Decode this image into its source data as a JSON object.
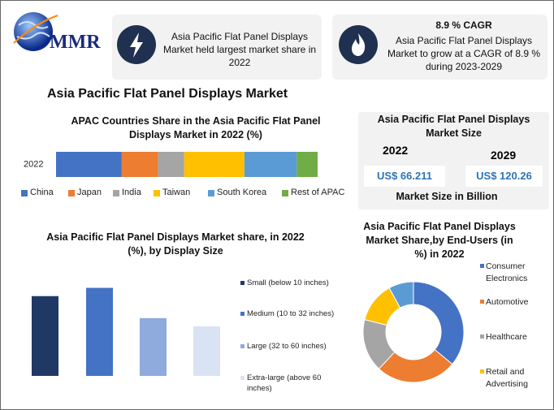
{
  "header": {
    "logo": "MMR",
    "box1": {
      "text": "Asia Pacific Flat Panel Displays Market held largest market share in 2022"
    },
    "box2": {
      "title": "8.9 % CAGR",
      "text": "Asia Pacific Flat Panel Displays Market to grow at a CAGR of 8.9 % during 2023-2029"
    }
  },
  "title": "Asia Pacific Flat Panel Displays Market",
  "market_size": {
    "title": "Asia Pacific Flat Panel Displays Market Size",
    "items": [
      {
        "year": "2022",
        "value": "US$ 66.211"
      },
      {
        "year": "2029",
        "value": "US$ 120.26"
      }
    ],
    "note": "Market Size in Billion"
  },
  "chart_data": [
    {
      "type": "bar",
      "orientation": "horizontal",
      "stacked": true,
      "title": "APAC Countries Share in the Asia Pacific Flat Panel Displays Market in 2022 (%)",
      "categories": [
        "2022"
      ],
      "xlim": [
        0,
        100
      ],
      "series": [
        {
          "name": "China",
          "color": "#4472c4",
          "values": [
            25
          ]
        },
        {
          "name": "Japan",
          "color": "#ed7d31",
          "values": [
            14
          ]
        },
        {
          "name": "India",
          "color": "#a5a5a5",
          "values": [
            10
          ]
        },
        {
          "name": "Taiwan",
          "color": "#ffc000",
          "values": [
            23
          ]
        },
        {
          "name": "South Korea",
          "color": "#5b9bd5",
          "values": [
            20
          ]
        },
        {
          "name": "Rest of APAC",
          "color": "#70ad47",
          "values": [
            8
          ]
        }
      ]
    },
    {
      "type": "bar",
      "orientation": "vertical",
      "title": "Asia Pacific Flat Panel Displays Market share, in 2022 (%), by Display Size",
      "categories": [
        "Small (below 10 inches)",
        "Medium (10 to 32 inches)",
        "Large (32 to 60 inches)",
        "Extra-large (above 60 inches)"
      ],
      "values": [
        29,
        32,
        21,
        18
      ],
      "colors": [
        "#203864",
        "#4472c4",
        "#8faadc",
        "#dae3f3"
      ],
      "ylim": [
        0,
        36
      ]
    },
    {
      "type": "pie",
      "donut": true,
      "title": "Asia Pacific Flat Panel Displays Market Share,by End-Users (in %) in 2022",
      "categories": [
        "Consumer Electronics",
        "Automotive",
        "Healthcare",
        "Retail and Advertising",
        null
      ],
      "values": [
        36,
        26,
        17,
        13,
        8
      ],
      "colors": [
        "#4472c4",
        "#ed7d31",
        "#a5a5a5",
        "#ffc000",
        "#5b9bd5"
      ]
    }
  ]
}
